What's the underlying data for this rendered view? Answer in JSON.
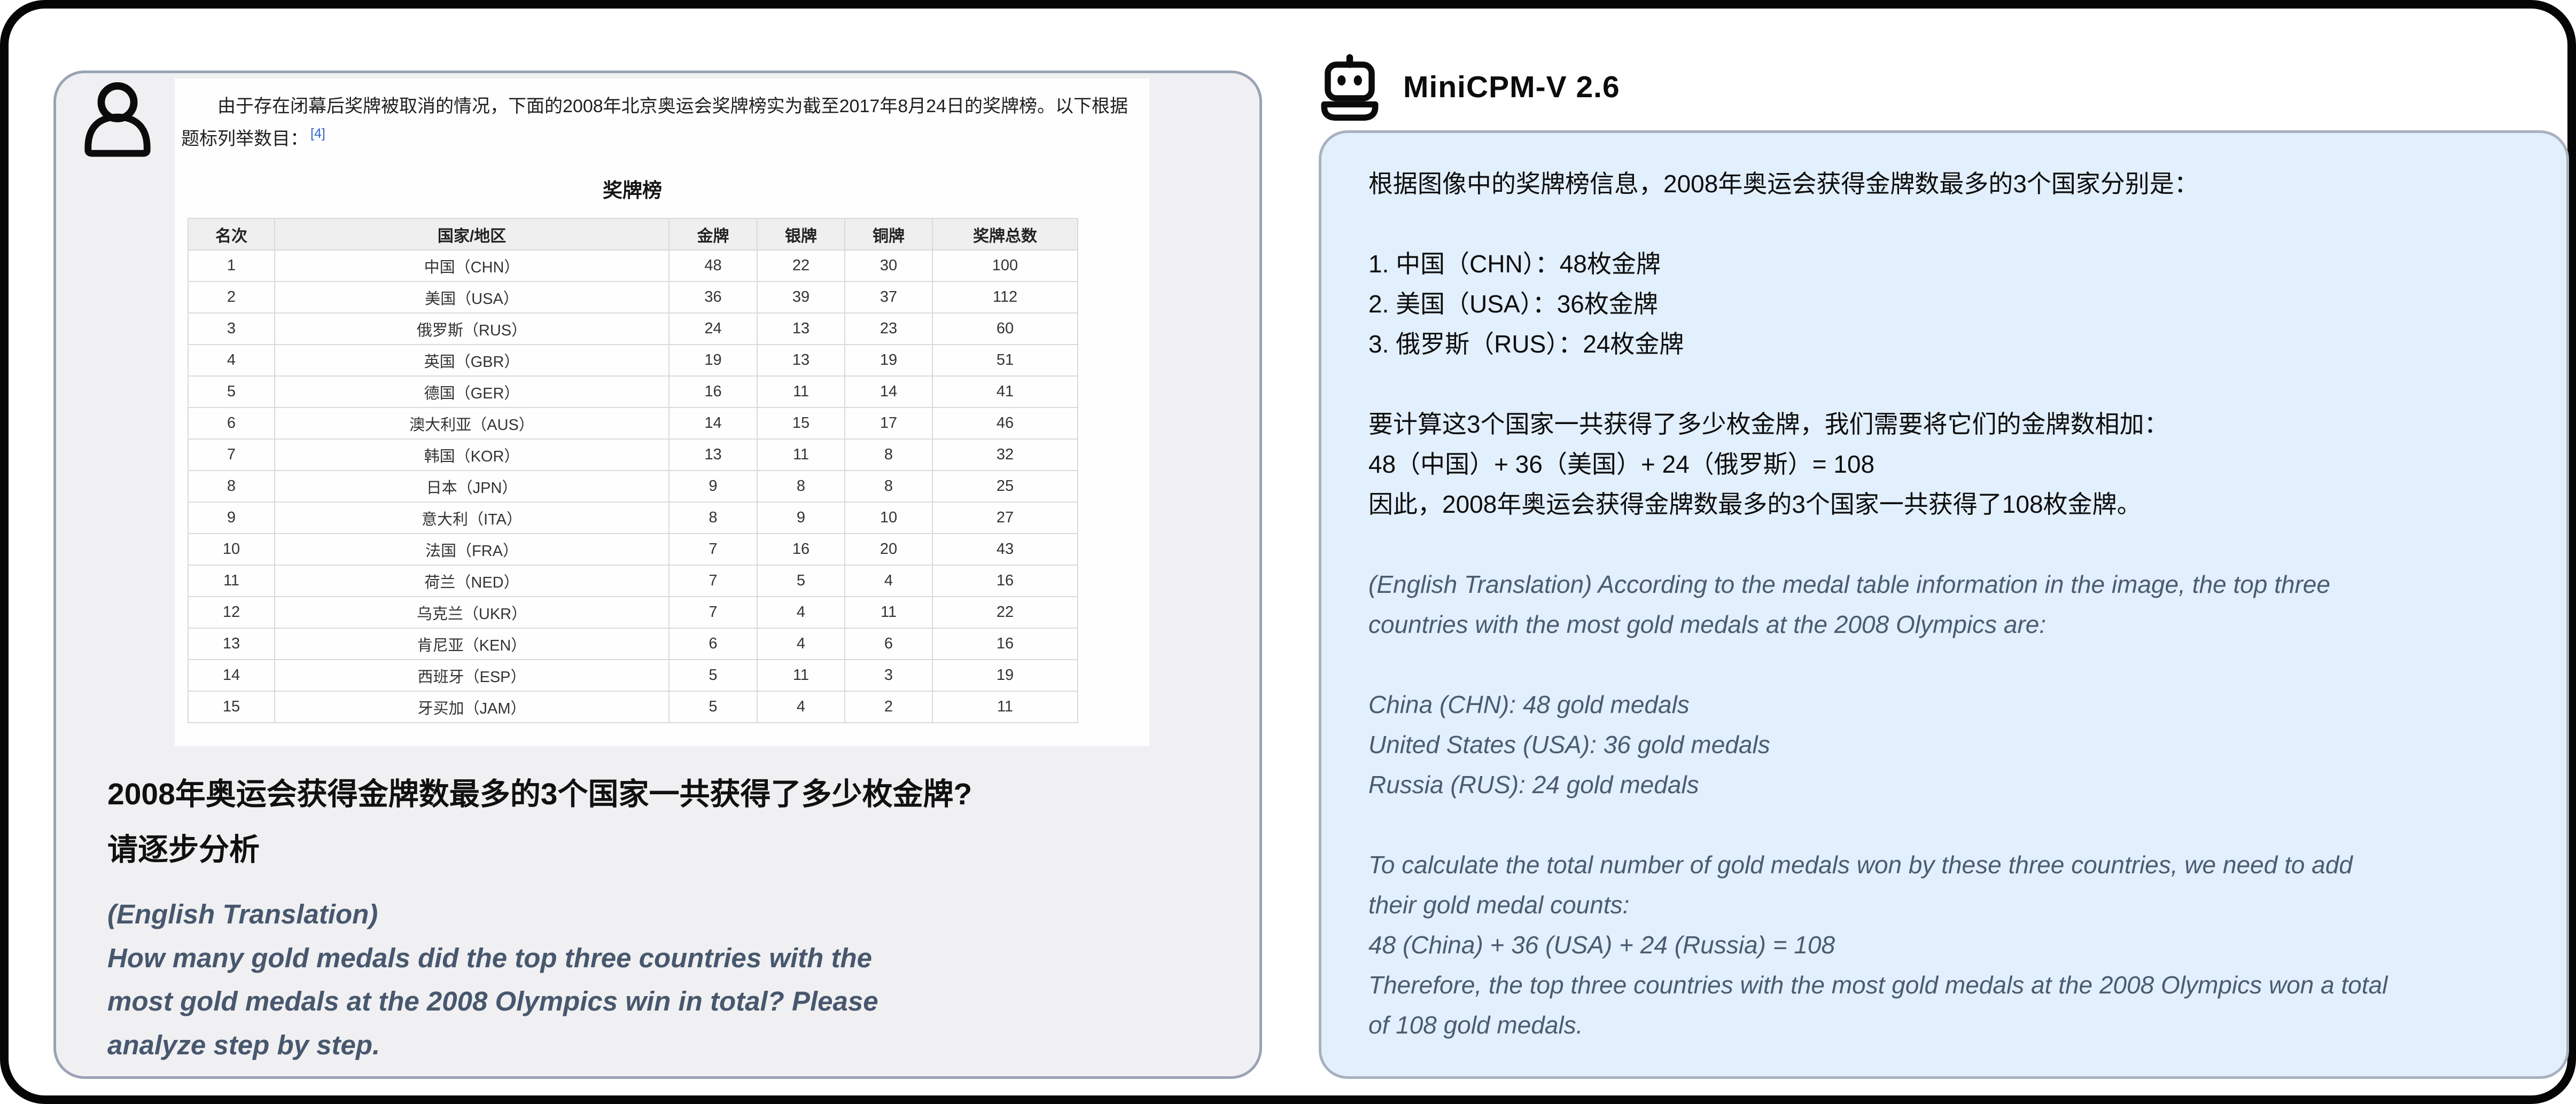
{
  "colors": {
    "frame": "#050505",
    "user_panel_bg": "#f0f0f2",
    "user_panel_border": "#9aa3b4",
    "bubble_bg": "#e2effc",
    "bubble_border": "#a9b1bd",
    "slate_text": "#47576e",
    "link_blue": "#3366cc"
  },
  "icons": {
    "user": "person-outline",
    "bot": "robot-outline"
  },
  "user_panel": {
    "embedded_image": {
      "intro_text": "由于存在闭幕后奖牌被取消的情况，下面的2008年北京奥运会奖牌榜实为截至2017年8月24日的奖牌榜。以下根据题标列举数目：",
      "citation": "[4]",
      "table_title": "奖牌榜",
      "columns": [
        "名次",
        "国家/地区",
        "金牌",
        "银牌",
        "铜牌",
        "奖牌总数"
      ],
      "rows": [
        [
          "1",
          "中国（CHN）",
          "48",
          "22",
          "30",
          "100"
        ],
        [
          "2",
          "美国（USA）",
          "36",
          "39",
          "37",
          "112"
        ],
        [
          "3",
          "俄罗斯（RUS）",
          "24",
          "13",
          "23",
          "60"
        ],
        [
          "4",
          "英国（GBR）",
          "19",
          "13",
          "19",
          "51"
        ],
        [
          "5",
          "德国（GER）",
          "16",
          "11",
          "14",
          "41"
        ],
        [
          "6",
          "澳大利亚（AUS）",
          "14",
          "15",
          "17",
          "46"
        ],
        [
          "7",
          "韩国（KOR）",
          "13",
          "11",
          "8",
          "32"
        ],
        [
          "8",
          "日本（JPN）",
          "9",
          "8",
          "8",
          "25"
        ],
        [
          "9",
          "意大利（ITA）",
          "8",
          "9",
          "10",
          "27"
        ],
        [
          "10",
          "法国（FRA）",
          "7",
          "16",
          "20",
          "43"
        ],
        [
          "11",
          "荷兰（NED）",
          "7",
          "5",
          "4",
          "16"
        ],
        [
          "12",
          "乌克兰（UKR）",
          "7",
          "4",
          "11",
          "22"
        ],
        [
          "13",
          "肯尼亚（KEN）",
          "6",
          "4",
          "6",
          "16"
        ],
        [
          "14",
          "西班牙（ESP）",
          "5",
          "11",
          "3",
          "19"
        ],
        [
          "15",
          "牙买加（JAM）",
          "5",
          "4",
          "2",
          "11"
        ]
      ]
    },
    "question_zh_lines": [
      "2008年奥运会获得金牌数最多的3个国家一共获得了多少枚金牌?",
      "请逐步分析"
    ],
    "english_label": "(English Translation)",
    "question_en": "How many gold medals did the top three countries with the most gold medals at the 2008 Olympics win in total? Please analyze step by step."
  },
  "bot_panel": {
    "model_name": "MiniCPM-V 2.6",
    "response_zh": [
      {
        "text": "根据图像中的奖牌榜信息，2008年奥运会获得金牌数最多的3个国家分别是：",
        "gap_after": true
      },
      {
        "text": "1. 中国（CHN）：48枚金牌"
      },
      {
        "text": "2. 美国（USA）：36枚金牌"
      },
      {
        "text": "3. 俄罗斯（RUS）：24枚金牌",
        "gap_after": true
      },
      {
        "text": "要计算这3个国家一共获得了多少枚金牌，我们需要将它们的金牌数相加："
      },
      {
        "text": "48（中国）+ 36（美国）+ 24（俄罗斯）= 108"
      },
      {
        "text": "因此，2008年奥运会获得金牌数最多的3个国家一共获得了108枚金牌。",
        "gap_after": true
      }
    ],
    "response_en": [
      {
        "text": "(English Translation) According to the medal table information in the image, the top three countries with the most gold medals at the 2008 Olympics are:",
        "gap_after": true
      },
      {
        "text": "China (CHN): 48 gold medals"
      },
      {
        "text": "United States (USA): 36 gold medals"
      },
      {
        "text": "Russia (RUS): 24 gold medals",
        "gap_after": true
      },
      {
        "text": "To calculate the total number of gold medals won by these three countries, we need to add their gold medal counts:"
      },
      {
        "text": "48 (China) + 36 (USA) + 24 (Russia) = 108"
      },
      {
        "text": "Therefore, the top three countries with the most gold medals at the 2008 Olympics won a total of 108 gold medals."
      }
    ]
  }
}
